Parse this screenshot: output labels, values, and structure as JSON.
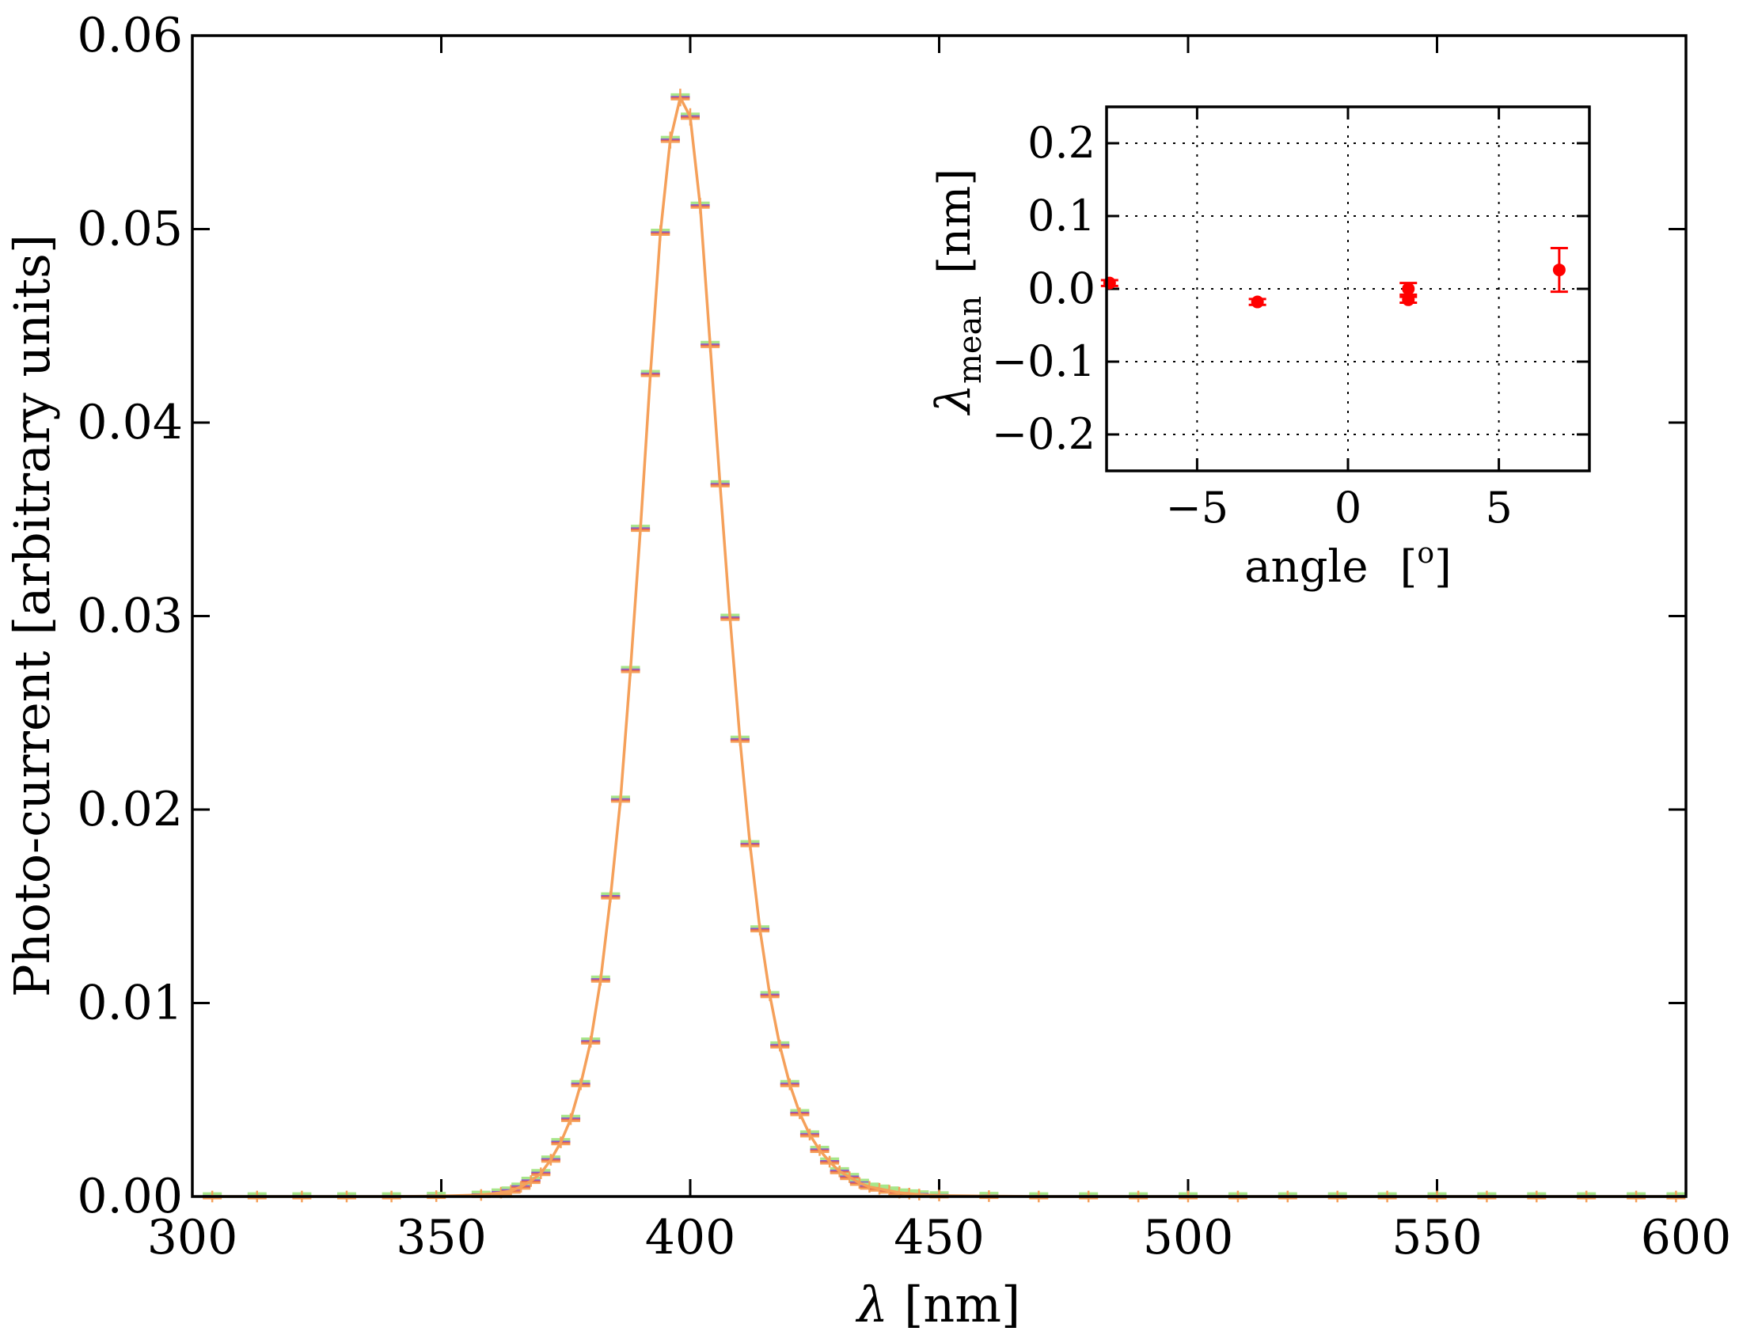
{
  "chart_data": [
    {
      "type": "line",
      "title": "",
      "xlabel_symbol": "λ",
      "xlabel_unit": "[nm]",
      "ylabel": "Photo-current   [arbitrary units]",
      "xlim": [
        300,
        600
      ],
      "ylim": [
        0.0,
        0.06
      ],
      "xticks": [
        "300",
        "350",
        "400",
        "450",
        "500",
        "550",
        "600"
      ],
      "yticks": [
        "0.00",
        "0.01",
        "0.02",
        "0.03",
        "0.04",
        "0.05",
        "0.06"
      ],
      "grid": false,
      "line_color": "#f5a05a",
      "errorbar_colors": [
        "#f5a05a",
        "#e6674a",
        "#8a5ad0",
        "#a8e68a"
      ],
      "x": [
        304,
        313,
        322,
        331,
        340,
        349,
        358,
        362,
        364,
        366,
        368,
        370,
        372,
        374,
        376,
        378,
        380,
        382,
        384,
        386,
        388,
        390,
        392,
        394,
        396,
        398,
        400,
        402,
        404,
        406,
        408,
        410,
        412,
        414,
        416,
        418,
        420,
        422,
        424,
        426,
        428,
        430,
        432,
        434,
        436,
        438,
        440,
        442,
        444,
        446,
        450,
        460,
        470,
        480,
        490,
        500,
        510,
        520,
        530,
        540,
        550,
        560,
        570,
        580,
        590,
        598
      ],
      "y": [
        0.0,
        0.0,
        0.0,
        0.0,
        0.0,
        2e-05,
        8e-05,
        0.0002,
        0.0003,
        0.0005,
        0.0008,
        0.0012,
        0.0019,
        0.0028,
        0.004,
        0.0058,
        0.008,
        0.0112,
        0.0155,
        0.0205,
        0.0272,
        0.0345,
        0.0425,
        0.0498,
        0.0546,
        0.0568,
        0.0558,
        0.0512,
        0.044,
        0.0368,
        0.0299,
        0.0236,
        0.0182,
        0.0138,
        0.0104,
        0.0078,
        0.0058,
        0.0043,
        0.0032,
        0.0024,
        0.0018,
        0.0013,
        0.001,
        0.0007,
        0.0005,
        0.0004,
        0.0003,
        0.0002,
        0.00015,
        0.0001,
        5e-05,
        2e-05,
        0.0,
        0.0,
        0.0,
        0.0,
        0.0,
        0.0,
        0.0,
        0.0,
        0.0,
        0.0,
        0.0,
        0.0,
        0.0,
        0.0
      ]
    },
    {
      "type": "scatter",
      "title": "",
      "xlabel": "angle   [o]",
      "ylabel_symbol": "λ",
      "ylabel_subscript": "mean",
      "ylabel_unit": "[nm]",
      "xlim": [
        -8,
        8
      ],
      "ylim": [
        -0.25,
        0.25
      ],
      "xticks": [
        -5,
        0,
        5
      ],
      "xtick_labels": [
        "−5",
        "0",
        "5"
      ],
      "yticks": [
        0.2,
        0.1,
        0.0,
        -0.1,
        -0.2
      ],
      "ytick_labels": [
        "0.2",
        "0.1",
        "0.0",
        "−0.1",
        "−0.2"
      ],
      "grid": true,
      "point_color": "#ff0000",
      "points": [
        {
          "x": -7.9,
          "y": 0.008,
          "err": 0.004
        },
        {
          "x": -3.0,
          "y": -0.018,
          "err": 0.004
        },
        {
          "x": 2.0,
          "y": 0.0,
          "err": 0.008
        },
        {
          "x": 2.0,
          "y": -0.015,
          "err": 0.004
        },
        {
          "x": 7.0,
          "y": 0.026,
          "err": 0.03
        }
      ]
    }
  ]
}
